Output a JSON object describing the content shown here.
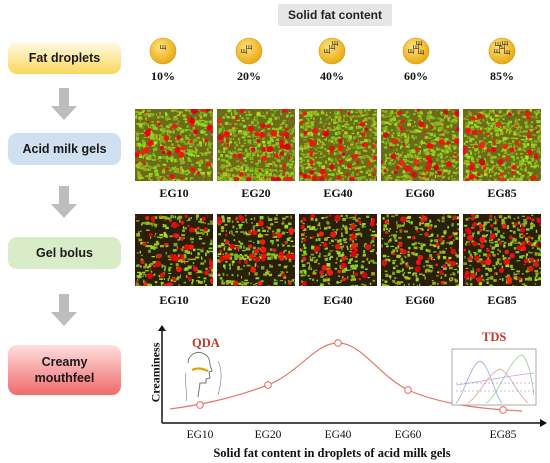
{
  "header": {
    "title": "Solid fat content"
  },
  "stages": [
    {
      "line1": "Fat droplets",
      "line2": ""
    },
    {
      "line1": "Acid milk gels",
      "line2": ""
    },
    {
      "line1": "Gel bolus",
      "line2": ""
    },
    {
      "line1": "Creamy",
      "line2": "mouthfeel"
    }
  ],
  "droplets": [
    "10%",
    "20%",
    "40%",
    "60%",
    "85%"
  ],
  "gel_labels": [
    "EG10",
    "EG20",
    "EG40",
    "EG60",
    "EG85"
  ],
  "bolus_labels": [
    "EG10",
    "EG20",
    "EG40",
    "EG60",
    "EG85"
  ],
  "bottom_chart": {
    "qda_label": "QDA",
    "tds_label": "TDS",
    "y_axis_label": "Creaminess",
    "x_ticks": [
      "EG10",
      "EG20",
      "EG40",
      "EG60",
      "EG85"
    ],
    "x_axis_title": "Solid fat content in droplets of acid milk gels"
  },
  "colors": {
    "fat_pill_top": "#fffbe6",
    "fat_pill_bottom": "#fbd65c",
    "acid_pill": "#cfe0f1",
    "bolus_pill": "#d8ecc8",
    "creamy_pill_top": "#ffdede",
    "creamy_pill_bottom": "#f06a6a",
    "curve": "#e8766a",
    "qda_tds_text": "#c0392b",
    "droplet": "#f0b622",
    "arrow": "#bdbdbd"
  }
}
